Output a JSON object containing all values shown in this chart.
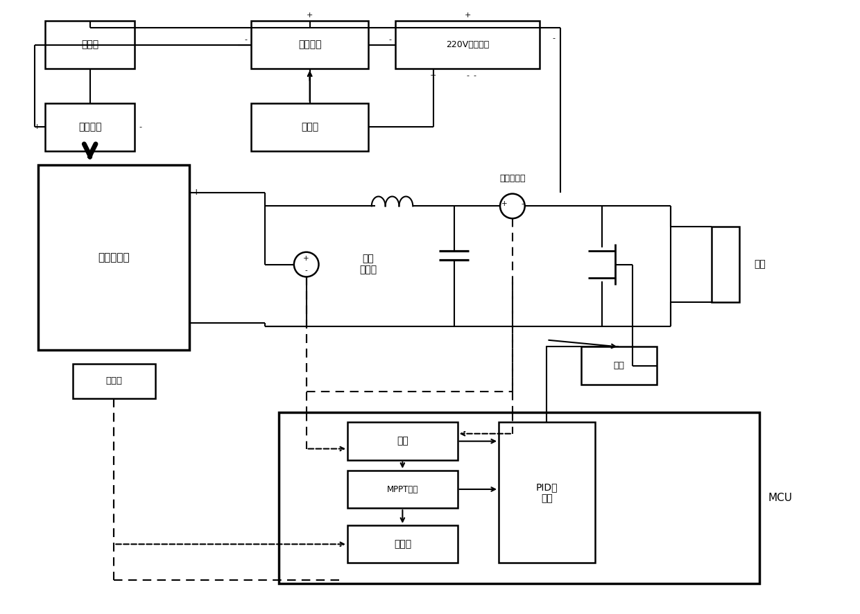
{
  "bg": "#ffffff",
  "lc": "#000000",
  "fw": 12.4,
  "fh": 8.86,
  "dpi": 100,
  "labels": {
    "trigger": "触发器",
    "stab": "稳压电源",
    "ac": "220V交流电源",
    "dimmer": "调光器",
    "xenon": "高压氙灯",
    "pv": "光伏电池板",
    "lux": "光度计",
    "vsens": "电压\n传感器",
    "isens": "电流传感器",
    "power": "功率",
    "mppt": "MPPT算法",
    "decay": "衰减率",
    "pid": "PID控\n制器",
    "mcu": "MCU",
    "drive": "驱动",
    "load": "负载"
  }
}
